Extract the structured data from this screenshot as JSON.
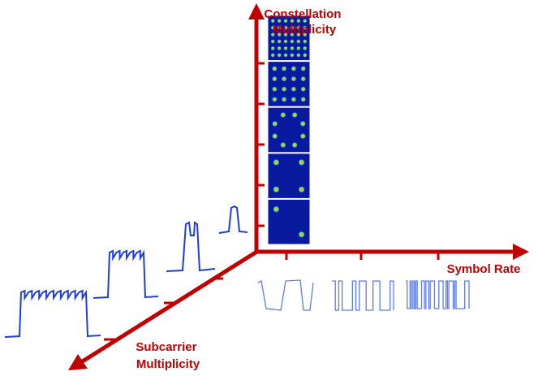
{
  "axes": {
    "constellation": [
      "Constellation",
      "Multiplicity"
    ],
    "symbol_rate": [
      "Symbol Rate"
    ],
    "subcarrier": [
      "Subcarrier",
      "Multiplicity"
    ]
  }
}
